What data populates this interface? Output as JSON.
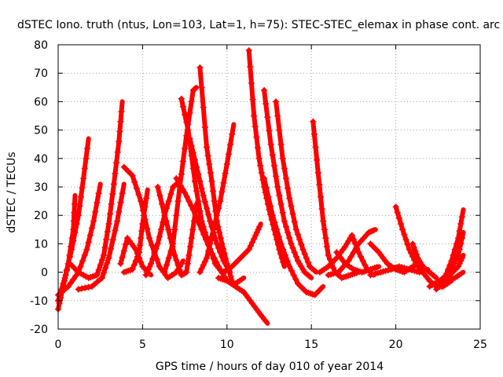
{
  "chart_data": {
    "type": "scatter",
    "title": "dSTEC Iono. truth (ntus, Lon=103, Lat=1, h=75): STEC-STEC_elemax in phase cont. arc",
    "xlabel": "GPS time / hours of day 010 of year 2014",
    "ylabel": "dSTEC  / TECUs",
    "xlim": [
      0,
      25
    ],
    "ylim": [
      -20,
      80
    ],
    "xticks": [
      0,
      5,
      10,
      15,
      20,
      25
    ],
    "yticks": [
      -20,
      -10,
      0,
      10,
      20,
      30,
      40,
      50,
      60,
      70,
      80
    ],
    "grid": true,
    "marker": "+",
    "color": "#ff0000",
    "series": [
      {
        "x": [
          0,
          0.3,
          0.6,
          0.9,
          1.0
        ],
        "y": [
          -13,
          -5,
          3,
          15,
          27
        ]
      },
      {
        "x": [
          0,
          0.4,
          0.8,
          1.2,
          1.5,
          1.8
        ],
        "y": [
          -10,
          -2,
          8,
          20,
          33,
          47
        ]
      },
      {
        "x": [
          0,
          0.6,
          1.2,
          1.7,
          2.1,
          2.5
        ],
        "y": [
          -8,
          -5,
          0,
          8,
          18,
          31
        ]
      },
      {
        "x": [
          0.7,
          1.2,
          1.8,
          2.3,
          2.7,
          3.0,
          3.3,
          3.6,
          3.8
        ],
        "y": [
          3,
          0,
          -2,
          -1,
          6,
          17,
          31,
          46,
          60
        ]
      },
      {
        "x": [
          1.2,
          2.0,
          2.6,
          3.0,
          3.5,
          3.9
        ],
        "y": [
          -6,
          -5,
          -2,
          5,
          18,
          31
        ]
      },
      {
        "x": [
          3.9,
          4.4,
          4.9,
          5.4,
          6.0,
          6.5,
          7.0,
          7.4
        ],
        "y": [
          37,
          34,
          25,
          12,
          2,
          -2,
          0,
          4
        ]
      },
      {
        "x": [
          3.9,
          4.4,
          4.8,
          5.0,
          5.3
        ],
        "y": [
          0,
          1,
          7,
          17,
          29
        ]
      },
      {
        "x": [
          3.7,
          4.1,
          4.6,
          5.0,
          5.5
        ],
        "y": [
          3,
          12,
          8,
          2,
          -1
        ]
      },
      {
        "x": [
          5.2,
          5.5,
          5.9,
          6.3,
          6.8,
          7.2
        ],
        "y": [
          -1,
          3,
          10,
          20,
          30,
          32
        ]
      },
      {
        "x": [
          5.9,
          6.4,
          6.9,
          7.3,
          7.6,
          7.9,
          8.2
        ],
        "y": [
          30,
          18,
          6,
          -1,
          0,
          12,
          24
        ]
      },
      {
        "x": [
          6.3,
          6.8,
          7.2,
          7.6,
          8.0,
          8.2
        ],
        "y": [
          0,
          10,
          30,
          48,
          64,
          65
        ]
      },
      {
        "x": [
          7.3,
          7.7,
          8.1,
          8.5,
          8.9,
          9.3,
          9.7,
          10.1
        ],
        "y": [
          61,
          50,
          32,
          18,
          10,
          3,
          0,
          1
        ]
      },
      {
        "x": [
          7.8,
          8.2,
          8.6,
          9.0,
          9.4,
          9.8,
          10.2
        ],
        "y": [
          47,
          37,
          27,
          18,
          10,
          4,
          0
        ]
      },
      {
        "x": [
          8.4,
          8.8,
          9.1,
          9.4,
          9.7,
          10.0,
          10.3
        ],
        "y": [
          72,
          44,
          32,
          18,
          10,
          3,
          -3
        ]
      },
      {
        "x": [
          7.0,
          7.5,
          8.0,
          8.5,
          9.0,
          9.5,
          10.0,
          10.5,
          11.0
        ],
        "y": [
          33,
          28,
          22,
          15,
          8,
          2,
          -3,
          -4,
          -2
        ]
      },
      {
        "x": [
          8.4,
          8.8,
          9.2,
          9.6,
          10.0,
          10.4
        ],
        "y": [
          0,
          5,
          15,
          25,
          38,
          52
        ]
      },
      {
        "x": [
          9.5,
          10.0,
          10.5,
          11.0,
          11.5,
          12.0,
          12.4
        ],
        "y": [
          -2,
          -3,
          -5,
          -7,
          -11,
          -15,
          -18
        ]
      },
      {
        "x": [
          9.8,
          10.3,
          10.8,
          11.3,
          11.7,
          12.0
        ],
        "y": [
          0,
          2,
          5,
          8,
          13,
          17
        ]
      },
      {
        "x": [
          11.3,
          11.6,
          11.9,
          12.2,
          12.5,
          12.8,
          13.1,
          13.4
        ],
        "y": [
          78,
          55,
          40,
          30,
          22,
          15,
          8,
          2
        ]
      },
      {
        "x": [
          12.2,
          12.6,
          13.0,
          13.4,
          13.8,
          14.2,
          14.6,
          15.0
        ],
        "y": [
          64,
          45,
          30,
          18,
          10,
          4,
          0,
          -2
        ]
      },
      {
        "x": [
          12.9,
          13.3,
          13.7,
          14.1,
          14.5,
          14.9,
          15.3
        ],
        "y": [
          60,
          40,
          26,
          15,
          8,
          2,
          0
        ]
      },
      {
        "x": [
          12.2,
          12.7,
          13.2,
          13.7,
          14.2,
          14.7,
          15.2,
          15.7
        ],
        "y": [
          33,
          20,
          10,
          2,
          -4,
          -7,
          -8,
          -5
        ]
      },
      {
        "x": [
          15.1,
          15.4,
          15.7,
          16.0,
          16.4,
          16.8,
          17.3,
          17.8
        ],
        "y": [
          53,
          35,
          18,
          6,
          0,
          -2,
          -1,
          0
        ]
      },
      {
        "x": [
          15.5,
          16.0,
          16.5,
          17.0,
          17.4,
          17.8,
          18.3,
          18.7
        ],
        "y": [
          0,
          2,
          5,
          9,
          13,
          7,
          1,
          -1
        ]
      },
      {
        "x": [
          16.0,
          16.6,
          17.2,
          17.8,
          18.4,
          18.8
        ],
        "y": [
          -1,
          0,
          4,
          10,
          14,
          15
        ]
      },
      {
        "x": [
          16.5,
          17.0,
          17.5,
          18.0,
          18.5,
          19.0
        ],
        "y": [
          7,
          3,
          1,
          0,
          1,
          2
        ]
      },
      {
        "x": [
          18.5,
          19.0,
          19.5,
          20.0,
          20.5,
          21.0,
          21.5
        ],
        "y": [
          10,
          7,
          3,
          1,
          0,
          2,
          3
        ]
      },
      {
        "x": [
          18.5,
          19.1,
          19.7,
          20.2,
          20.8,
          21.4,
          21.9
        ],
        "y": [
          -1,
          0,
          1,
          2,
          1,
          0,
          1
        ]
      },
      {
        "x": [
          20.0,
          20.4,
          20.8,
          21.2,
          21.6,
          22.0,
          22.4,
          22.8,
          23.3
        ],
        "y": [
          23,
          15,
          8,
          3,
          0,
          -3,
          -5,
          -5,
          -3
        ]
      },
      {
        "x": [
          21.0,
          21.3,
          21.6,
          22.0,
          22.4
        ],
        "y": [
          10,
          5,
          2,
          0,
          -2
        ]
      },
      {
        "x": [
          22.4,
          22.9,
          23.3,
          23.7,
          24.0
        ],
        "y": [
          -6,
          -2,
          4,
          12,
          22
        ]
      },
      {
        "x": [
          22.0,
          22.6,
          23.2,
          23.7,
          24.0
        ],
        "y": [
          -5,
          -3,
          0,
          6,
          14
        ]
      },
      {
        "x": [
          22.6,
          23.2,
          23.7,
          24.0
        ],
        "y": [
          -4,
          -1,
          2,
          6
        ]
      },
      {
        "x": [
          23.0,
          23.5,
          24.0
        ],
        "y": [
          -3,
          -2,
          0
        ]
      }
    ]
  }
}
